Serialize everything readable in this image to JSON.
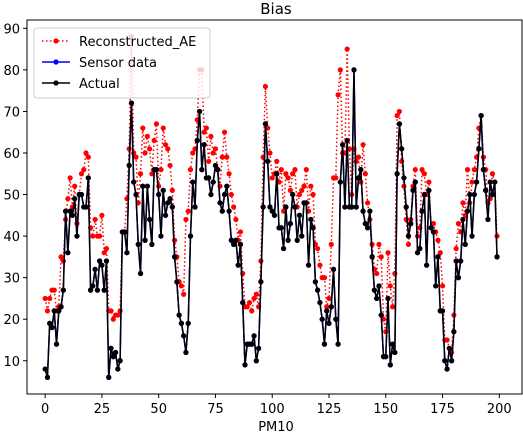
{
  "chart_data": {
    "type": "line",
    "title": "Bias",
    "xlabel": "PM10",
    "ylabel": "",
    "xlim": [
      -8,
      210
    ],
    "ylim": [
      2,
      92
    ],
    "xticks": [
      0,
      25,
      50,
      75,
      100,
      125,
      150,
      175,
      200
    ],
    "yticks": [
      10,
      20,
      30,
      40,
      50,
      60,
      70,
      80,
      90
    ],
    "grid": false,
    "legend_position": "top-left",
    "series": [
      {
        "name": "Reconstructed_AE",
        "color": "#ff0000",
        "style": "dotted",
        "marker": "circle",
        "values": [
          25,
          22,
          25,
          27,
          27,
          22,
          23,
          35,
          34,
          44,
          49,
          54,
          47,
          52,
          43,
          50,
          55,
          56,
          60,
          59,
          42,
          40,
          44,
          40,
          40,
          45,
          36,
          37,
          22,
          22,
          20,
          21,
          21,
          22,
          41,
          41,
          49,
          61,
          88,
          60,
          59,
          48,
          55,
          66,
          60,
          64,
          61,
          55,
          63,
          67,
          52,
          56,
          66,
          62,
          61,
          57,
          51,
          39,
          35,
          29,
          28,
          26,
          44,
          46,
          56,
          60,
          61,
          68,
          80,
          80,
          65,
          66,
          58,
          64,
          60,
          61,
          56,
          52,
          59,
          65,
          59,
          55,
          50,
          47,
          44,
          39,
          41,
          31,
          23,
          23,
          24,
          22,
          25,
          26,
          23,
          34,
          59,
          76,
          66,
          60,
          54,
          55,
          58,
          53,
          56,
          46,
          55,
          54,
          51,
          55,
          56,
          47,
          50,
          51,
          52,
          56,
          46,
          52,
          50,
          38,
          37,
          33,
          30,
          30,
          23,
          25,
          38,
          54,
          54,
          74,
          80,
          60,
          60,
          85,
          61,
          50,
          61,
          58,
          59,
          53,
          62,
          55,
          48,
          44,
          38,
          32,
          31,
          38,
          35,
          20,
          17,
          36,
          28,
          23,
          31,
          69,
          70,
          58,
          52,
          44,
          38,
          44,
          52,
          56,
          40,
          42,
          56,
          55,
          50,
          53,
          42,
          43,
          41,
          39,
          36,
          28,
          15,
          15,
          13,
          12,
          21,
          37,
          43,
          41,
          48,
          45,
          56,
          48,
          53,
          56,
          59,
          66,
          69,
          59,
          56,
          48,
          49,
          55,
          53,
          40
        ]
      },
      {
        "name": "Sensor data",
        "color": "#0000ff",
        "style": "solid",
        "marker": "circle",
        "values": [
          8,
          6,
          19,
          18,
          22,
          14,
          22,
          23,
          27,
          46,
          36,
          46,
          45,
          49,
          40,
          50,
          50,
          47,
          47,
          54,
          27,
          28,
          32,
          27,
          34,
          33,
          27,
          34,
          6,
          13,
          11,
          12,
          8,
          10,
          41,
          41,
          36,
          57,
          72,
          53,
          50,
          38,
          31,
          52,
          39,
          52,
          44,
          38,
          56,
          56,
          50,
          40,
          51,
          45,
          48,
          49,
          47,
          35,
          29,
          21,
          19,
          16,
          12,
          19,
          40,
          53,
          47,
          63,
          70,
          56,
          62,
          54,
          54,
          50,
          53,
          57,
          56,
          48,
          46,
          50,
          52,
          46,
          39,
          38,
          39,
          33,
          38,
          24,
          9,
          14,
          14,
          14,
          16,
          10,
          13,
          29,
          47,
          67,
          58,
          47,
          46,
          45,
          55,
          42,
          42,
          37,
          47,
          39,
          43,
          50,
          47,
          39,
          45,
          40,
          48,
          48,
          33,
          44,
          42,
          29,
          27,
          24,
          20,
          14,
          22,
          19,
          23,
          32,
          20,
          14,
          53,
          62,
          47,
          63,
          47,
          47,
          80,
          47,
          54,
          56,
          46,
          43,
          42,
          46,
          35,
          27,
          25,
          28,
          21,
          11,
          11,
          25,
          9,
          14,
          12,
          55,
          67,
          61,
          54,
          47,
          40,
          43,
          51,
          53,
          36,
          37,
          46,
          50,
          33,
          51,
          42,
          41,
          28,
          35,
          22,
          22,
          10,
          8,
          13,
          10,
          17,
          34,
          30,
          34,
          44,
          38,
          46,
          50,
          40,
          50,
          53,
          61,
          69,
          56,
          51,
          44,
          53,
          50,
          53,
          35
        ]
      },
      {
        "name": "Actual",
        "color": "#000000",
        "style": "solid",
        "marker": "circle",
        "values": [
          8,
          6,
          19,
          18,
          22,
          14,
          22,
          23,
          27,
          46,
          36,
          46,
          45,
          49,
          40,
          50,
          50,
          47,
          47,
          54,
          27,
          28,
          32,
          27,
          34,
          33,
          27,
          34,
          6,
          13,
          11,
          12,
          8,
          10,
          41,
          41,
          36,
          57,
          72,
          53,
          50,
          38,
          31,
          52,
          39,
          52,
          44,
          38,
          56,
          56,
          50,
          40,
          51,
          45,
          48,
          49,
          47,
          35,
          29,
          21,
          19,
          16,
          12,
          19,
          40,
          53,
          47,
          63,
          70,
          56,
          62,
          54,
          54,
          50,
          53,
          57,
          56,
          48,
          46,
          50,
          52,
          46,
          39,
          38,
          39,
          33,
          38,
          24,
          9,
          14,
          14,
          14,
          16,
          10,
          13,
          29,
          47,
          67,
          58,
          47,
          46,
          45,
          55,
          42,
          42,
          37,
          47,
          39,
          43,
          50,
          47,
          39,
          45,
          40,
          48,
          48,
          33,
          44,
          42,
          29,
          27,
          24,
          20,
          14,
          22,
          19,
          23,
          32,
          20,
          14,
          53,
          62,
          47,
          63,
          47,
          47,
          80,
          47,
          54,
          56,
          46,
          43,
          42,
          46,
          35,
          27,
          25,
          28,
          21,
          11,
          11,
          25,
          9,
          14,
          12,
          55,
          67,
          61,
          54,
          47,
          40,
          43,
          51,
          53,
          36,
          37,
          46,
          50,
          33,
          51,
          42,
          41,
          28,
          35,
          22,
          22,
          10,
          8,
          13,
          10,
          17,
          34,
          30,
          34,
          44,
          38,
          46,
          50,
          40,
          50,
          53,
          61,
          69,
          56,
          51,
          44,
          53,
          50,
          53,
          35
        ]
      }
    ]
  }
}
